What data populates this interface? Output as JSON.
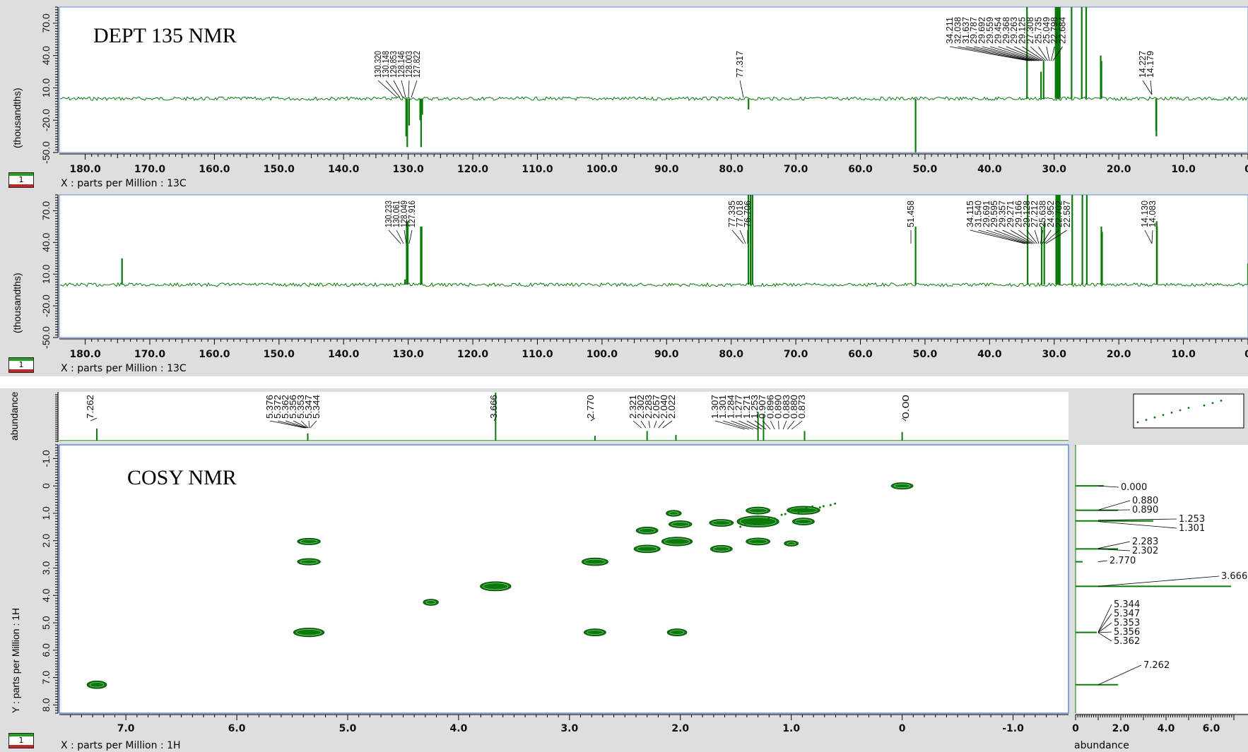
{
  "panels": {
    "dept": {
      "title": "DEPT 135 NMR",
      "badge": "1",
      "xlabel": "X : parts per Million : 13C",
      "ylabel": "(thousandths)"
    },
    "c13": {
      "badge": "1",
      "xlabel": "X : parts per Million : 13C",
      "ylabel": "(thousandths)"
    },
    "cosy": {
      "title": "COSY NMR",
      "badge": "1",
      "xlabel": "X : parts per Million : 1H",
      "ylabel": "Y : parts per Million : 1H",
      "top_ylabel": "abundance",
      "right_xlabel": "abundance"
    }
  },
  "colors": {
    "spectrum": "#0a7a0a",
    "frame": "#6688dd",
    "background": "#dedede"
  },
  "chart_data": [
    {
      "type": "line",
      "title": "DEPT 135 NMR",
      "xlabel": "X : parts per Million : 13C",
      "ylabel": "(thousandths)",
      "xlim": [
        184,
        0
      ],
      "ylim": [
        -50,
        85
      ],
      "x_ticks": [
        "180.0",
        "170.0",
        "160.0",
        "150.0",
        "140.0",
        "130.0",
        "120.0",
        "110.0",
        "100.0",
        "90.0",
        "80.0",
        "70.0",
        "60.0",
        "50.0",
        "40.0",
        "30.0",
        "20.0",
        "10.0",
        "0"
      ],
      "y_ticks": [
        "70.0",
        "40.0",
        "10.0",
        "-20.0",
        "-50.0"
      ],
      "peaks": [
        {
          "x": 130.32,
          "y": -35
        },
        {
          "x": 130.148,
          "y": -45
        },
        {
          "x": 129.853,
          "y": -25
        },
        {
          "x": 128.146,
          "y": -20
        },
        {
          "x": 128.003,
          "y": -45
        },
        {
          "x": 127.822,
          "y": -15
        },
        {
          "x": 77.317,
          "y": -10
        },
        {
          "x": 51.458,
          "y": -50
        },
        {
          "x": 34.211,
          "y": 85
        },
        {
          "x": 32.038,
          "y": 25
        },
        {
          "x": 31.637,
          "y": 35
        },
        {
          "x": 29.787,
          "y": 85
        },
        {
          "x": 29.692,
          "y": 85
        },
        {
          "x": 29.559,
          "y": 85
        },
        {
          "x": 29.454,
          "y": 60
        },
        {
          "x": 29.368,
          "y": 85
        },
        {
          "x": 29.263,
          "y": 85
        },
        {
          "x": 29.125,
          "y": 85
        },
        {
          "x": 27.308,
          "y": 85
        },
        {
          "x": 25.735,
          "y": 85
        },
        {
          "x": 25.049,
          "y": 85
        },
        {
          "x": 22.798,
          "y": 40
        },
        {
          "x": 22.684,
          "y": 35
        },
        {
          "x": 14.227,
          "y": -30
        },
        {
          "x": 14.179,
          "y": -35
        }
      ],
      "labels": [
        {
          "text": "130.320",
          "group": "a"
        },
        {
          "text": "130.148",
          "group": "a"
        },
        {
          "text": "129.853",
          "group": "a"
        },
        {
          "text": "128.146",
          "group": "a"
        },
        {
          "text": "128.003",
          "group": "a"
        },
        {
          "text": "127.822",
          "group": "a"
        },
        {
          "text": "77.317",
          "group": "b"
        },
        {
          "text": "34.211",
          "group": "c"
        },
        {
          "text": "32.038",
          "group": "c"
        },
        {
          "text": "31.637",
          "group": "c"
        },
        {
          "text": "29.787",
          "group": "c"
        },
        {
          "text": "29.692",
          "group": "c"
        },
        {
          "text": "29.559",
          "group": "c"
        },
        {
          "text": "29.454",
          "group": "c"
        },
        {
          "text": "29.368",
          "group": "c"
        },
        {
          "text": "29.263",
          "group": "c"
        },
        {
          "text": "29.125",
          "group": "c"
        },
        {
          "text": "27.308",
          "group": "c"
        },
        {
          "text": "25.735",
          "group": "c"
        },
        {
          "text": "25.049",
          "group": "c"
        },
        {
          "text": "22.798",
          "group": "c"
        },
        {
          "text": "22.684",
          "group": "c"
        },
        {
          "text": "14.227",
          "group": "d"
        },
        {
          "text": "14.179",
          "group": "d"
        }
      ]
    },
    {
      "type": "line",
      "xlabel": "X : parts per Million : 13C",
      "ylabel": "(thousandths)",
      "xlim": [
        184,
        0
      ],
      "ylim": [
        -50,
        85
      ],
      "x_ticks": [
        "180.0",
        "170.0",
        "160.0",
        "150.0",
        "140.0",
        "130.0",
        "120.0",
        "110.0",
        "100.0",
        "90.0",
        "80.0",
        "70.0",
        "60.0",
        "50.0",
        "40.0",
        "30.0",
        "20.0",
        "10.0",
        "0"
      ],
      "y_ticks": [
        "70.0",
        "40.0",
        "10.0",
        "-20.0",
        "-50.0"
      ],
      "peaks": [
        {
          "x": 174.3,
          "y": 25
        },
        {
          "x": 130.5,
          "y": 5
        },
        {
          "x": 130.233,
          "y": 60
        },
        {
          "x": 130.061,
          "y": 60
        },
        {
          "x": 128.049,
          "y": 55
        },
        {
          "x": 127.916,
          "y": 55
        },
        {
          "x": 77.335,
          "y": 85
        },
        {
          "x": 77.0,
          "y": 85
        },
        {
          "x": 76.706,
          "y": 85
        },
        {
          "x": 51.458,
          "y": 55
        },
        {
          "x": 34.115,
          "y": 85
        },
        {
          "x": 31.94,
          "y": 55
        },
        {
          "x": 31.54,
          "y": 60
        },
        {
          "x": 29.691,
          "y": 85
        },
        {
          "x": 29.595,
          "y": 85
        },
        {
          "x": 29.357,
          "y": 85
        },
        {
          "x": 29.271,
          "y": 85
        },
        {
          "x": 29.166,
          "y": 85
        },
        {
          "x": 29.128,
          "y": 85
        },
        {
          "x": 27.212,
          "y": 85
        },
        {
          "x": 25.638,
          "y": 85
        },
        {
          "x": 24.952,
          "y": 85
        },
        {
          "x": 22.702,
          "y": 55
        },
        {
          "x": 22.587,
          "y": 50
        },
        {
          "x": 14.13,
          "y": 60
        },
        {
          "x": 14.083,
          "y": 55
        },
        {
          "x": 0.0,
          "y": 20
        }
      ],
      "labels": [
        {
          "text": "130.233",
          "group": "a"
        },
        {
          "text": "130.061",
          "group": "a"
        },
        {
          "text": "128.049",
          "group": "a"
        },
        {
          "text": "127.916",
          "group": "a"
        },
        {
          "text": "77.335",
          "group": "b"
        },
        {
          "text": "77.018",
          "group": "b"
        },
        {
          "text": "76.706",
          "group": "b"
        },
        {
          "text": "51.458",
          "group": "e"
        },
        {
          "text": "34.115",
          "group": "c"
        },
        {
          "text": "31.540",
          "group": "c"
        },
        {
          "text": "29.691",
          "group": "c"
        },
        {
          "text": "29.595",
          "group": "c"
        },
        {
          "text": "29.357",
          "group": "c"
        },
        {
          "text": "29.271",
          "group": "c"
        },
        {
          "text": "29.166",
          "group": "c"
        },
        {
          "text": "29.128",
          "group": "c"
        },
        {
          "text": "27.212",
          "group": "c"
        },
        {
          "text": "25.638",
          "group": "c"
        },
        {
          "text": "24.952",
          "group": "c"
        },
        {
          "text": "22.702",
          "group": "c"
        },
        {
          "text": "22.587",
          "group": "c"
        },
        {
          "text": "14.130",
          "group": "d"
        },
        {
          "text": "14.083",
          "group": "d"
        }
      ]
    },
    {
      "type": "scatter",
      "title": "COSY NMR",
      "xlabel": "X : parts per Million : 1H",
      "ylabel": "Y : parts per Million : 1H",
      "xlim": [
        7.6,
        -1.5
      ],
      "ylim": [
        -1.5,
        8.3
      ],
      "x_ticks": [
        "7.0",
        "6.0",
        "5.0",
        "4.0",
        "3.0",
        "2.0",
        "1.0",
        "0",
        "-1.0"
      ],
      "y_ticks": [
        "-1.0",
        "0",
        "1.0",
        "2.0",
        "3.0",
        "4.0",
        "5.0",
        "6.0",
        "7.0",
        "8.0"
      ],
      "cross_peaks": [
        {
          "x": 7.262,
          "y": 7.262,
          "w": 0.1,
          "h": 0.12
        },
        {
          "x": 5.35,
          "y": 5.35,
          "w": 0.2,
          "h": 0.16
        },
        {
          "x": 5.35,
          "y": 2.03,
          "w": 0.13,
          "h": 0.08
        },
        {
          "x": 5.35,
          "y": 2.77,
          "w": 0.13,
          "h": 0.08
        },
        {
          "x": 3.666,
          "y": 3.666,
          "w": 0.2,
          "h": 0.18
        },
        {
          "x": 4.25,
          "y": 4.25,
          "w": 0.06,
          "h": 0.07
        },
        {
          "x": 2.77,
          "y": 2.77,
          "w": 0.16,
          "h": 0.12
        },
        {
          "x": 2.77,
          "y": 5.35,
          "w": 0.12,
          "h": 0.1
        },
        {
          "x": 2.3,
          "y": 2.3,
          "w": 0.16,
          "h": 0.12
        },
        {
          "x": 2.3,
          "y": 1.63,
          "w": 0.12,
          "h": 0.1
        },
        {
          "x": 2.03,
          "y": 2.03,
          "w": 0.2,
          "h": 0.16
        },
        {
          "x": 2.03,
          "y": 5.35,
          "w": 0.1,
          "h": 0.1
        },
        {
          "x": 2.0,
          "y": 1.4,
          "w": 0.13,
          "h": 0.1
        },
        {
          "x": 2.06,
          "y": 1.0,
          "w": 0.06,
          "h": 0.06
        },
        {
          "x": 1.63,
          "y": 1.35,
          "w": 0.14,
          "h": 0.1
        },
        {
          "x": 1.63,
          "y": 2.3,
          "w": 0.12,
          "h": 0.1
        },
        {
          "x": 1.3,
          "y": 1.3,
          "w": 0.3,
          "h": 0.25
        },
        {
          "x": 1.3,
          "y": 0.9,
          "w": 0.14,
          "h": 0.1
        },
        {
          "x": 1.3,
          "y": 2.03,
          "w": 0.14,
          "h": 0.1
        },
        {
          "x": 0.89,
          "y": 0.89,
          "w": 0.22,
          "h": 0.14
        },
        {
          "x": 0.89,
          "y": 1.3,
          "w": 0.12,
          "h": 0.1
        },
        {
          "x": 1.0,
          "y": 2.1,
          "w": 0.05,
          "h": 0.04
        },
        {
          "x": 0.0,
          "y": 0.0,
          "w": 0.12,
          "h": 0.08
        }
      ],
      "top_spectrum": {
        "ylabel": "abundance",
        "peaks": [
          {
            "x": 7.262,
            "y": 0.25
          },
          {
            "x": 5.36,
            "y": 0.15
          },
          {
            "x": 3.666,
            "y": 1.0
          },
          {
            "x": 2.77,
            "y": 0.1
          },
          {
            "x": 2.3,
            "y": 0.2
          },
          {
            "x": 2.04,
            "y": 0.12
          },
          {
            "x": 1.3,
            "y": 0.6
          },
          {
            "x": 1.25,
            "y": 0.55
          },
          {
            "x": 0.88,
            "y": 0.2
          },
          {
            "x": 0.0,
            "y": 0.18
          }
        ],
        "labels": [
          {
            "text": "7.262",
            "group": "a"
          },
          {
            "text": "5.376",
            "group": "b"
          },
          {
            "text": "5.372",
            "group": "b"
          },
          {
            "text": "5.362",
            "group": "b"
          },
          {
            "text": "5.356",
            "group": "b"
          },
          {
            "text": "5.353",
            "group": "b"
          },
          {
            "text": "5.347",
            "group": "b"
          },
          {
            "text": "5.344",
            "group": "b"
          },
          {
            "text": "3.666",
            "group": "c"
          },
          {
            "text": "2.770",
            "group": "d"
          },
          {
            "text": "2.321",
            "group": "e"
          },
          {
            "text": "2.302",
            "group": "e"
          },
          {
            "text": "2.283",
            "group": "e"
          },
          {
            "text": "2.057",
            "group": "e"
          },
          {
            "text": "2.040",
            "group": "e"
          },
          {
            "text": "2.022",
            "group": "e"
          },
          {
            "text": "1.307",
            "group": "f"
          },
          {
            "text": "1.301",
            "group": "f"
          },
          {
            "text": "1.284",
            "group": "f"
          },
          {
            "text": "1.277",
            "group": "f"
          },
          {
            "text": "1.271",
            "group": "f"
          },
          {
            "text": "1.253",
            "group": "f"
          },
          {
            "text": "0.907",
            "group": "f"
          },
          {
            "text": "0.896",
            "group": "f"
          },
          {
            "text": "0.890",
            "group": "f"
          },
          {
            "text": "0.883",
            "group": "f"
          },
          {
            "text": "0.880",
            "group": "f"
          },
          {
            "text": "0.873",
            "group": "f"
          },
          {
            "text": "0.00",
            "group": "g"
          }
        ]
      },
      "right_spectrum": {
        "xlabel": "abundance",
        "x_ticks": [
          "0",
          "2.0",
          "4.0",
          "6.0"
        ],
        "labels": [
          {
            "text": "0.000"
          },
          {
            "text": "0.880"
          },
          {
            "text": "0.890"
          },
          {
            "text": "1.253"
          },
          {
            "text": "1.301"
          },
          {
            "text": "2.283"
          },
          {
            "text": "2.302"
          },
          {
            "text": "2.770"
          },
          {
            "text": "3.666"
          },
          {
            "text": "5.344"
          },
          {
            "text": "5.347"
          },
          {
            "text": "5.353"
          },
          {
            "text": "5.356"
          },
          {
            "text": "5.362"
          },
          {
            "text": "7.262"
          }
        ]
      }
    }
  ]
}
